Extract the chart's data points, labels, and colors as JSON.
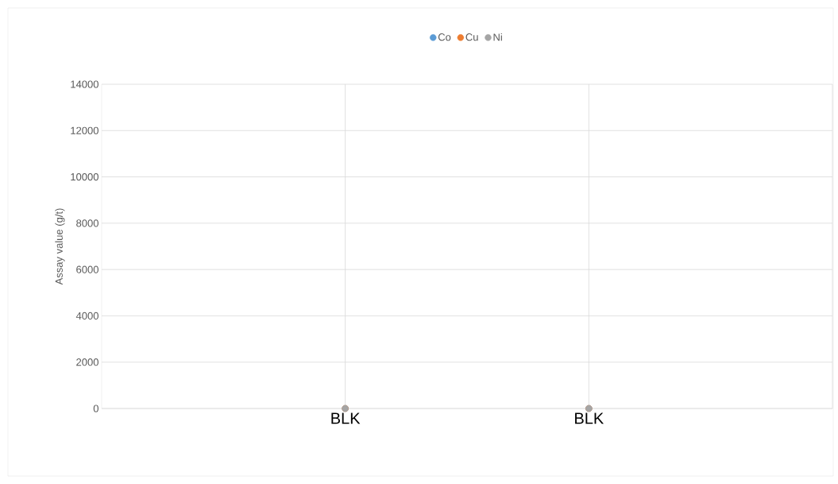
{
  "chart_data": {
    "type": "scatter",
    "ylabel": "Assay value (g/t)",
    "categories": [
      "BLK",
      "BLK"
    ],
    "series": [
      {
        "name": "Co",
        "color": "#5b9bd5",
        "values": [
          0,
          0
        ]
      },
      {
        "name": "Cu",
        "color": "#ed7d31",
        "values": [
          0,
          0
        ]
      },
      {
        "name": "Ni",
        "color": "#a5a5a5",
        "values": [
          0,
          0
        ]
      }
    ],
    "ylim": [
      0,
      14000
    ],
    "yticks": [
      0,
      2000,
      4000,
      6000,
      8000,
      10000,
      12000,
      14000
    ],
    "grid": true,
    "legend": "top",
    "marker": "circle"
  }
}
